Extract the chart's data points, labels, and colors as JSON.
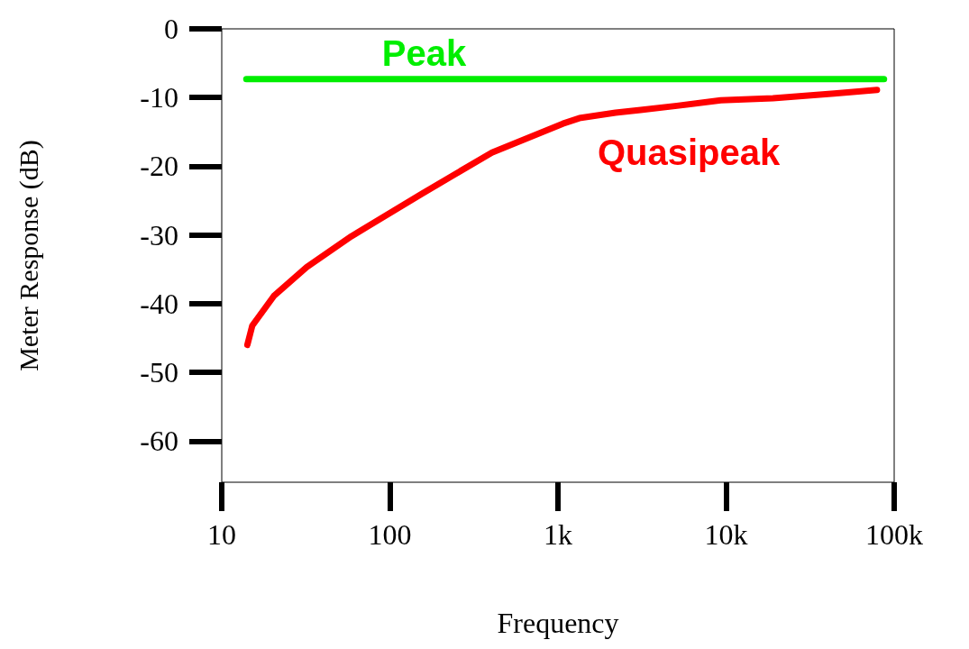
{
  "chart_data": {
    "type": "line",
    "xlabel": "Frequency",
    "ylabel": "Meter Response (dB)",
    "log": "x",
    "xlim": [
      10,
      100000
    ],
    "ylim": [
      -66,
      0
    ],
    "xticks": [
      10,
      100,
      {
        "value": 1000,
        "label": "1k"
      },
      {
        "value": 10000,
        "label": "10k"
      },
      {
        "value": 100000,
        "label": "100k"
      }
    ],
    "yticks": [
      0,
      -10,
      -20,
      -30,
      -40,
      -50,
      -60
    ],
    "grid": false,
    "legend": false,
    "marker": "none",
    "line_style": "solid",
    "series": [
      {
        "name": "Peak",
        "color": "#00ee00",
        "x": [
          14,
          87000
        ],
        "values": [
          -7.3,
          -7.3
        ]
      },
      {
        "name": "Quasipeak",
        "color": "#ff0000",
        "x": [
          14.2,
          15.2,
          20.4,
          32,
          59,
          155,
          405,
          1070,
          1340,
          2200,
          3100,
          5100,
          9300,
          19000,
          44000,
          79000
        ],
        "values": [
          -46,
          -43.2,
          -38.9,
          -34.7,
          -30.2,
          -24,
          -18,
          -13.8,
          -13,
          -12.2,
          -11.8,
          -11.2,
          -10.4,
          -10.1,
          -9.4,
          -8.9
        ]
      }
    ]
  }
}
